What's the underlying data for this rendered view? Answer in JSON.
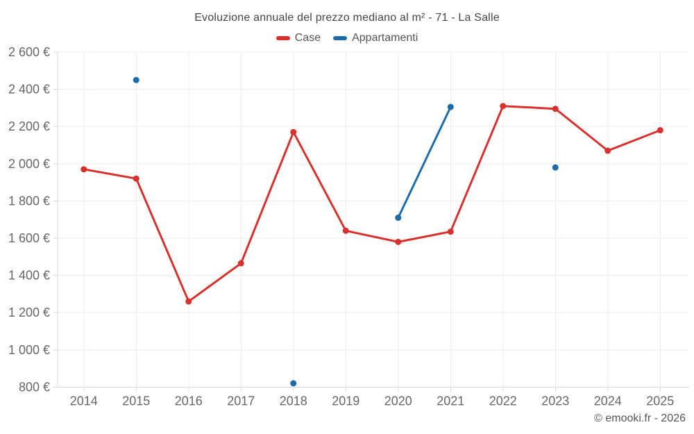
{
  "title": "Evoluzione annuale del prezzo mediano al m² - 71 - La Salle",
  "legend": {
    "items": [
      {
        "label": "Case",
        "color": "#d7312e"
      },
      {
        "label": "Appartamenti",
        "color": "#1b6ca8"
      }
    ]
  },
  "copyright": "© emooki.fr - 2026",
  "colors": {
    "background": "#ffffff",
    "grid": "#ededed",
    "axis": "#d9d9d9",
    "tick_label": "#666666",
    "title": "#444444",
    "case_red": "#d7312e",
    "appartamenti_blue": "#1b6ca8"
  },
  "chart_data": {
    "type": "line",
    "title": "Evoluzione annuale del prezzo mediano al m² - 71 - La Salle",
    "x": [
      2014,
      2015,
      2016,
      2017,
      2018,
      2019,
      2020,
      2021,
      2022,
      2023,
      2024,
      2025
    ],
    "series": [
      {
        "name": "Case",
        "color": "#d7312e",
        "values": [
          1970,
          1920,
          1260,
          1465,
          2170,
          1640,
          1580,
          1635,
          2310,
          2295,
          2070,
          2180
        ]
      },
      {
        "name": "Appartamenti",
        "color": "#1b6ca8",
        "values": [
          null,
          2450,
          null,
          null,
          820,
          null,
          1710,
          2305,
          null,
          1980,
          null,
          null
        ]
      }
    ],
    "xlabel": "",
    "ylabel": "",
    "ylim": [
      800,
      2600
    ],
    "ytick_step": 200,
    "ytick_suffix": " €",
    "grid": true,
    "legend_position": "top"
  }
}
